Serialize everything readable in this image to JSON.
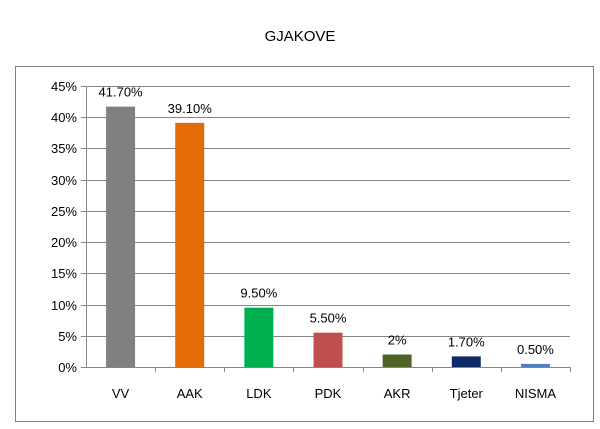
{
  "chart_data": {
    "type": "bar",
    "title": "GJAKOVE",
    "categories": [
      "VV",
      "AAK",
      "LDK",
      "PDK",
      "AKR",
      "Tjeter",
      "NISMA"
    ],
    "values": [
      41.7,
      39.1,
      9.5,
      5.5,
      2,
      1.7,
      0.5
    ],
    "data_labels": [
      "41.70%",
      "39.10%",
      "9.50%",
      "5.50%",
      "2%",
      "1.70%",
      "0.50%"
    ],
    "colors": [
      "#808080",
      "#e36c09",
      "#00b050",
      "#c0504d",
      "#4f6228",
      "#0f2a64",
      "#4f81bd"
    ],
    "y_ticks": [
      "0%",
      "5%",
      "10%",
      "15%",
      "20%",
      "25%",
      "30%",
      "35%",
      "40%",
      "45%"
    ],
    "ylim": [
      0,
      45
    ],
    "grid": true,
    "legend": "none"
  }
}
